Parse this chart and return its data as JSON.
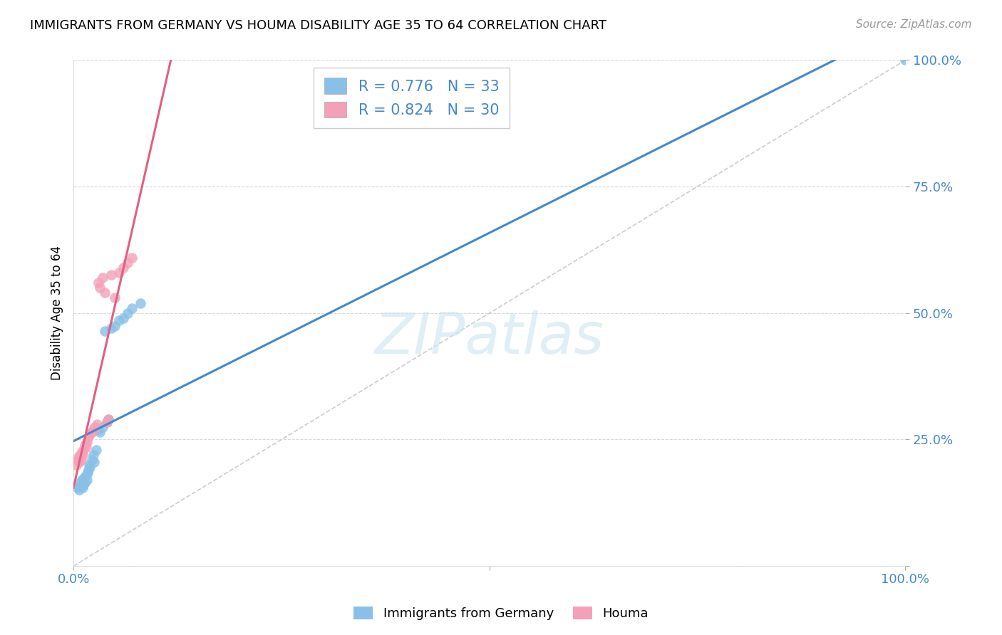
{
  "title": "IMMIGRANTS FROM GERMANY VS HOUMA DISABILITY AGE 35 TO 64 CORRELATION CHART",
  "source": "Source: ZipAtlas.com",
  "ylabel_label": "Disability Age 35 to 64",
  "legend_blue_label": "Immigrants from Germany",
  "legend_pink_label": "Houma",
  "watermark": "ZIPatlas",
  "blue_color": "#88c0e8",
  "pink_color": "#f4a0b8",
  "blue_line_color": "#4488cc",
  "pink_line_color": "#e06080",
  "diagonal_color": "#cccccc",
  "R_blue": 0.776,
  "N_blue": 33,
  "R_pink": 0.824,
  "N_pink": 30,
  "blue_scatter": [
    [
      0.5,
      15.5
    ],
    [
      0.7,
      15.0
    ],
    [
      0.8,
      16.5
    ],
    [
      0.9,
      16.0
    ],
    [
      1.0,
      17.0
    ],
    [
      1.1,
      15.5
    ],
    [
      1.2,
      16.0
    ],
    [
      1.3,
      17.5
    ],
    [
      1.4,
      16.5
    ],
    [
      1.5,
      18.0
    ],
    [
      1.6,
      17.0
    ],
    [
      1.7,
      18.5
    ],
    [
      1.8,
      19.0
    ],
    [
      1.9,
      20.0
    ],
    [
      2.0,
      19.5
    ],
    [
      2.2,
      21.0
    ],
    [
      2.4,
      22.0
    ],
    [
      2.5,
      20.5
    ],
    [
      2.7,
      23.0
    ],
    [
      3.0,
      27.0
    ],
    [
      3.2,
      26.5
    ],
    [
      3.5,
      27.5
    ],
    [
      3.8,
      46.5
    ],
    [
      4.0,
      28.5
    ],
    [
      4.2,
      29.0
    ],
    [
      4.5,
      47.0
    ],
    [
      5.0,
      47.5
    ],
    [
      5.5,
      48.5
    ],
    [
      6.0,
      49.0
    ],
    [
      6.5,
      50.0
    ],
    [
      7.0,
      51.0
    ],
    [
      8.0,
      52.0
    ],
    [
      100.0,
      100.0
    ]
  ],
  "pink_scatter": [
    [
      0.3,
      20.0
    ],
    [
      0.5,
      21.0
    ],
    [
      0.6,
      21.5
    ],
    [
      0.7,
      20.5
    ],
    [
      0.8,
      22.0
    ],
    [
      0.9,
      21.0
    ],
    [
      1.0,
      22.5
    ],
    [
      1.1,
      22.0
    ],
    [
      1.2,
      23.0
    ],
    [
      1.4,
      24.0
    ],
    [
      1.5,
      23.5
    ],
    [
      1.6,
      24.5
    ],
    [
      1.8,
      25.5
    ],
    [
      2.0,
      26.0
    ],
    [
      2.2,
      26.5
    ],
    [
      2.4,
      27.0
    ],
    [
      2.6,
      27.5
    ],
    [
      2.8,
      28.0
    ],
    [
      3.0,
      56.0
    ],
    [
      3.2,
      55.0
    ],
    [
      3.5,
      57.0
    ],
    [
      3.8,
      54.0
    ],
    [
      4.0,
      28.5
    ],
    [
      4.2,
      29.0
    ],
    [
      4.5,
      57.5
    ],
    [
      5.0,
      53.0
    ],
    [
      5.5,
      58.0
    ],
    [
      6.0,
      59.0
    ],
    [
      6.5,
      60.0
    ],
    [
      7.0,
      61.0
    ]
  ],
  "xlim": [
    0.0,
    100.0
  ],
  "ylim": [
    0.0,
    100.0
  ],
  "xticks": [
    0.0,
    50.0,
    100.0
  ],
  "xticklabels": [
    "0.0%",
    "",
    "100.0%"
  ],
  "yticks": [
    0.0,
    25.0,
    50.0,
    75.0,
    100.0
  ],
  "yticklabels": [
    "",
    "25.0%",
    "50.0%",
    "75.0%",
    "100.0%"
  ]
}
